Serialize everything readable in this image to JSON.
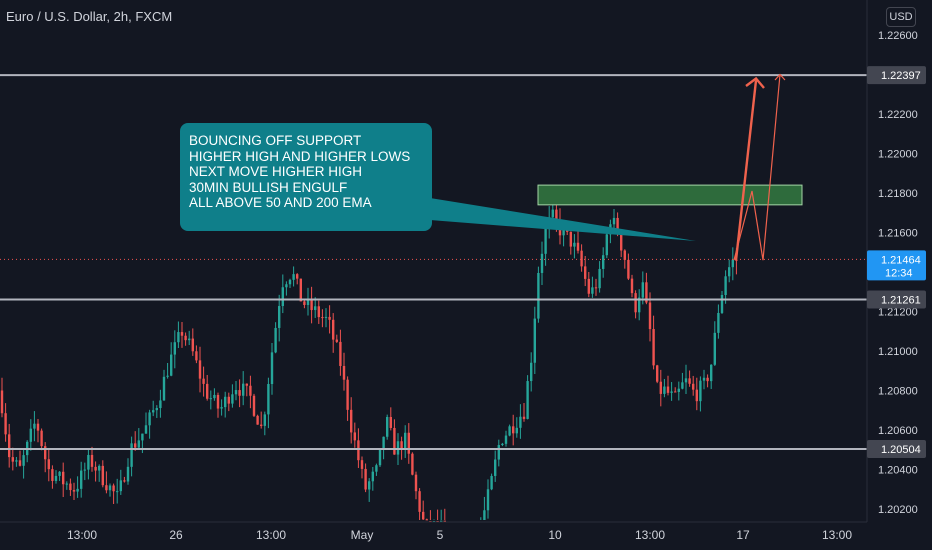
{
  "header": {
    "symbol_title": "Euro / U.S. Dollar, 2h, FXCM",
    "currency": "USD"
  },
  "callout": {
    "lines": [
      "BOUNCING OFF SUPPORT",
      "HIGHER HIGH AND HIGHER LOWS",
      "NEXT MOVE HIGHER HIGH",
      "30MIN BULLISH ENGULF",
      "ALL ABOVE 50 AND 200 EMA"
    ],
    "color": "#0f7f8a"
  },
  "colors": {
    "background": "#131722",
    "up": "#26a69a",
    "down": "#ef5350",
    "level_line": "#b2b5be",
    "zone_fill": "#2e6b3c",
    "arrow": "#f0624d",
    "current_price": "#2196f3"
  },
  "chart_data": {
    "type": "candlestick",
    "title": "Euro / U.S. Dollar, 2h, FXCM",
    "ylim": [
      1.2017,
      1.2268
    ],
    "x_ticks": [
      "13:00",
      "26",
      "13:00",
      "May",
      "5",
      "10",
      "13:00",
      "17",
      "13:00"
    ],
    "y_ticks": [
      "1.22600",
      "1.22400",
      "1.22200",
      "1.22000",
      "1.21800",
      "1.21600",
      "1.21400",
      "1.21200",
      "1.21000",
      "1.20800",
      "1.20600",
      "1.20400",
      "1.20200"
    ],
    "horizontal_levels": [
      {
        "value": 1.22397,
        "label": "1.22397"
      },
      {
        "value": 1.21261,
        "label": "1.21261"
      },
      {
        "value": 1.20504,
        "label": "1.20504"
      }
    ],
    "current_price": {
      "value": 1.21464,
      "label": "1.21464",
      "countdown": "12:34"
    },
    "resistance_zone": {
      "low": 1.2174,
      "high": 1.2184
    },
    "projected_path": [
      1.2146,
      1.2181,
      1.2146,
      1.224
    ]
  }
}
